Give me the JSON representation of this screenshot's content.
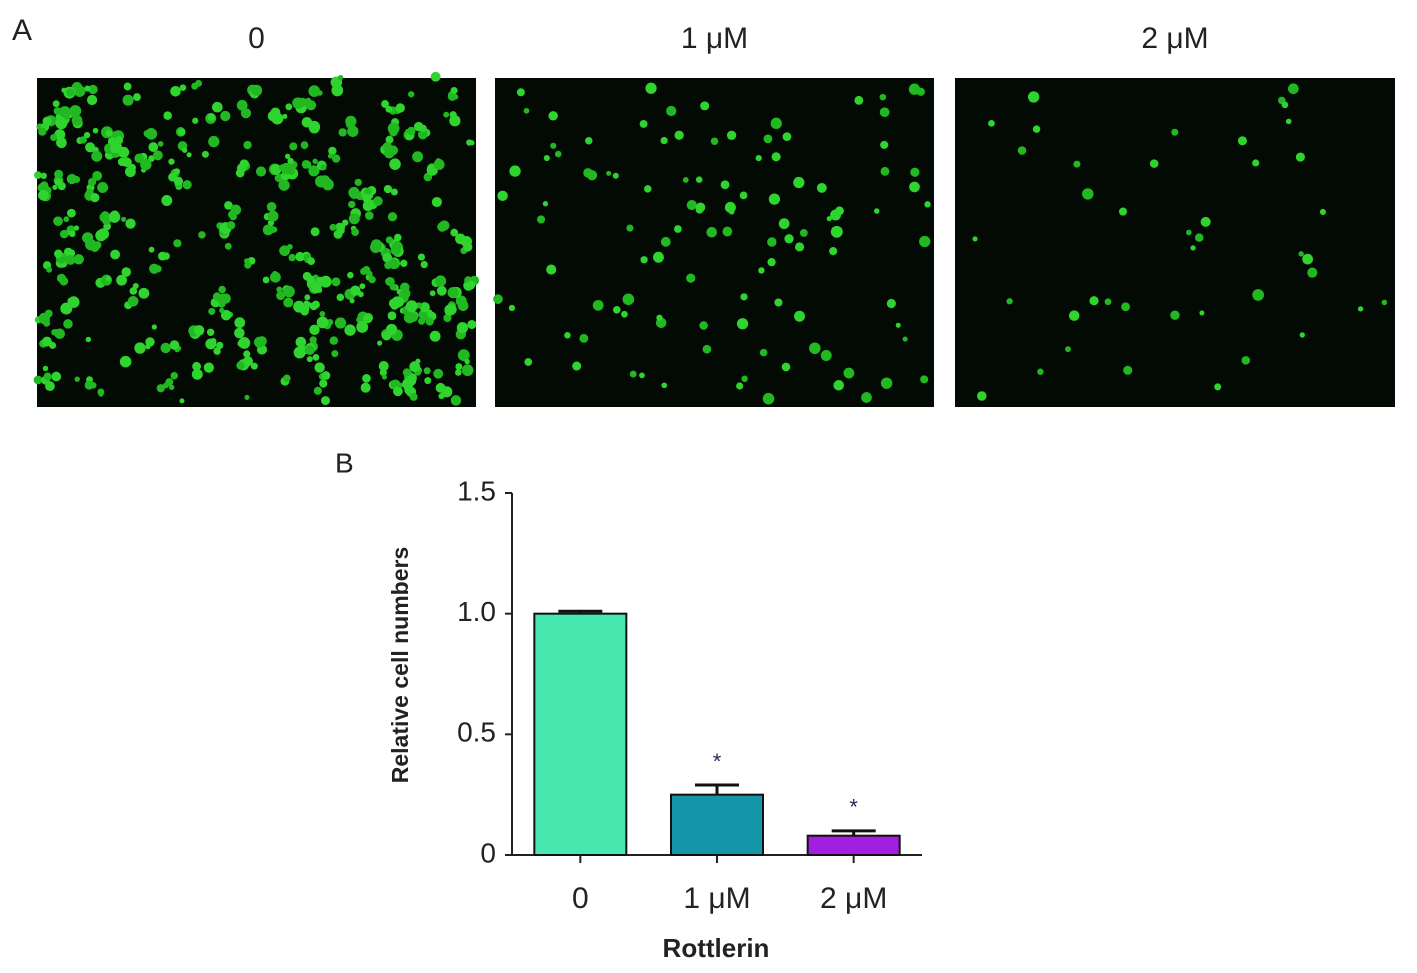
{
  "panel_a": {
    "label": "A",
    "images": [
      {
        "title": "0"
      },
      {
        "title": "1 μM"
      },
      {
        "title": "2 μM"
      }
    ]
  },
  "chart_data": {
    "type": "bar",
    "panel_label": "B",
    "ylabel": "Relative cell numbers",
    "xlabel": "Rottlerin",
    "categories": [
      "0",
      "1 μM",
      "2 μM"
    ],
    "values": [
      1.0,
      0.25,
      0.08
    ],
    "errors": [
      0.01,
      0.04,
      0.02
    ],
    "colors": [
      "#46e8b0",
      "#1596a8",
      "#a21ee0"
    ],
    "significance": [
      null,
      "*",
      "*"
    ],
    "ylim": [
      0,
      1.5
    ],
    "yticks": [
      0,
      0.5,
      {
        "value": 1,
        "label": "1.0"
      },
      1.5
    ]
  }
}
